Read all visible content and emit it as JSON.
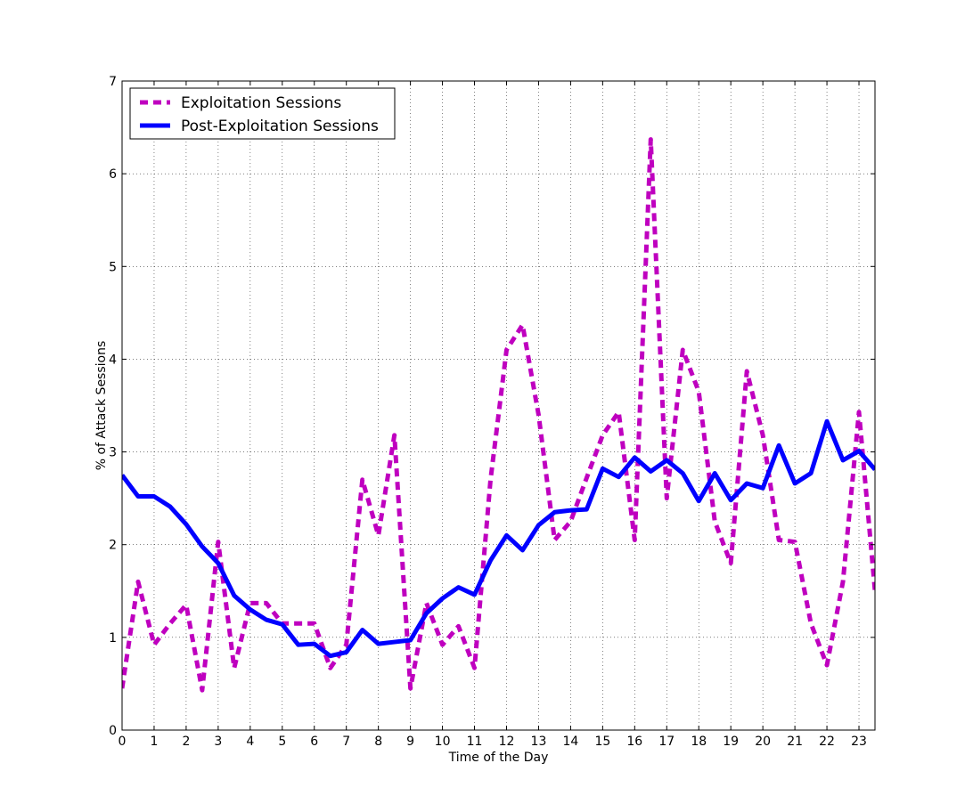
{
  "chart_data": {
    "type": "line",
    "xlabel": "Time of the Day",
    "ylabel": "% of Attack Sessions",
    "xlim": [
      0,
      23.5
    ],
    "ylim": [
      0,
      7
    ],
    "x_ticks": [
      "0",
      "1",
      "2",
      "3",
      "4",
      "5",
      "6",
      "7",
      "8",
      "9",
      "10",
      "11",
      "12",
      "13",
      "14",
      "15",
      "16",
      "17",
      "18",
      "19",
      "20",
      "21",
      "22",
      "23"
    ],
    "y_ticks": [
      "0",
      "1",
      "2",
      "3",
      "4",
      "5",
      "6",
      "7"
    ],
    "grid": true,
    "legend_position": "top-left",
    "x": [
      0,
      0.5,
      1,
      1.5,
      2,
      2.5,
      3,
      3.5,
      4,
      4.5,
      5,
      5.5,
      6,
      6.5,
      7,
      7.5,
      8,
      8.5,
      9,
      9.5,
      10,
      10.5,
      11,
      11.5,
      12,
      12.5,
      13,
      13.5,
      14,
      14.5,
      15,
      15.5,
      16,
      16.5,
      17,
      17.5,
      18,
      18.5,
      19,
      19.5,
      20,
      20.5,
      21,
      21.5,
      22,
      22.5,
      23,
      23.5
    ],
    "series": [
      {
        "name": "Exploitation Sessions",
        "color": "#bf00bf",
        "style": "dashed",
        "values": [
          0.45,
          1.6,
          0.92,
          1.15,
          1.35,
          0.43,
          2.03,
          0.67,
          1.37,
          1.37,
          1.15,
          1.15,
          1.15,
          0.67,
          0.92,
          2.7,
          2.1,
          3.18,
          0.45,
          1.37,
          0.92,
          1.12,
          0.67,
          2.7,
          4.1,
          4.37,
          3.4,
          2.05,
          2.25,
          2.72,
          3.18,
          3.43,
          2.05,
          6.37,
          2.5,
          4.1,
          3.65,
          2.25,
          1.8,
          3.87,
          3.18,
          2.05,
          2.03,
          1.15,
          0.7,
          1.6,
          3.43,
          1.5
        ]
      },
      {
        "name": "Post-Exploitation Sessions",
        "color": "#0000ff",
        "style": "solid",
        "values": [
          2.75,
          2.52,
          2.52,
          2.41,
          2.22,
          1.98,
          1.8,
          1.45,
          1.3,
          1.19,
          1.14,
          0.92,
          0.93,
          0.8,
          0.84,
          1.08,
          0.93,
          0.95,
          0.97,
          1.26,
          1.42,
          1.54,
          1.46,
          1.83,
          2.1,
          1.94,
          2.21,
          2.35,
          2.37,
          2.38,
          2.82,
          2.73,
          2.94,
          2.79,
          2.91,
          2.77,
          2.47,
          2.77,
          2.48,
          2.66,
          2.61,
          3.07,
          2.66,
          2.77,
          3.33,
          2.91,
          3.01,
          2.81
        ]
      }
    ]
  }
}
